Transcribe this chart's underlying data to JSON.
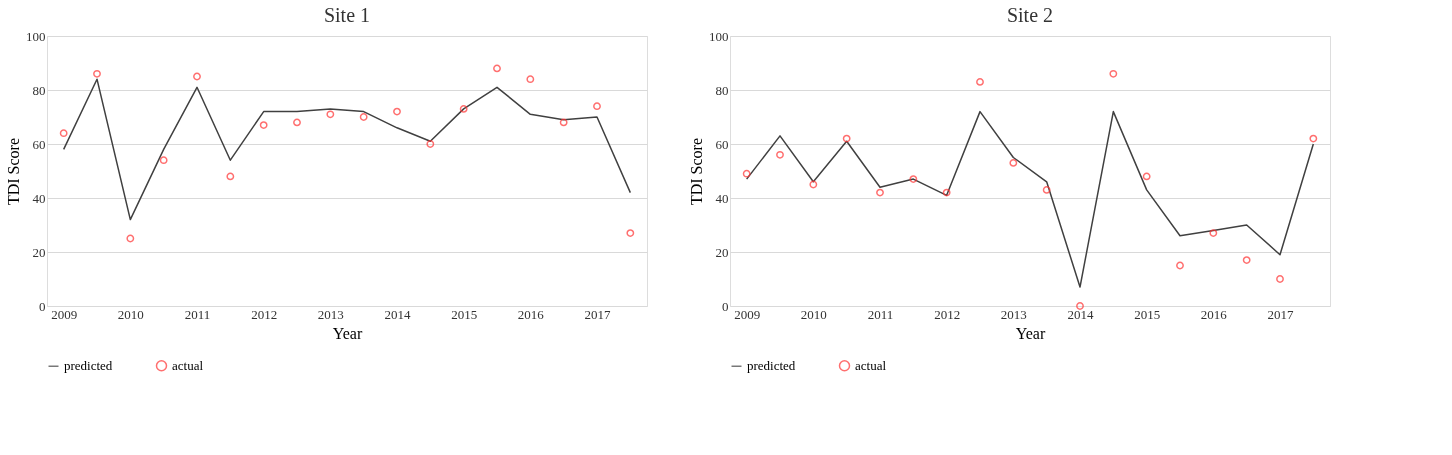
{
  "chart_data": [
    {
      "type": "line",
      "title": "Site 1",
      "xlabel": "Year",
      "ylabel": "TDI Score",
      "categories": [
        "2009",
        null,
        "2010",
        null,
        "2011",
        null,
        "2012",
        null,
        "2013",
        null,
        "2014",
        null,
        "2015",
        null,
        "2016",
        null,
        "2017",
        null
      ],
      "ylim": [
        0,
        100
      ],
      "yticks": [
        0,
        20,
        40,
        60,
        80,
        100
      ],
      "grid": "y",
      "legend": "bottom",
      "series": [
        {
          "name": "predicted",
          "color": "#404040",
          "marker": "none",
          "values": [
            58,
            84,
            32,
            58,
            81,
            54,
            72,
            72,
            73,
            72,
            66,
            61,
            73,
            81,
            71,
            69,
            70,
            42
          ]
        },
        {
          "name": "actual",
          "type": "scatter",
          "color": "#ff3333",
          "marker": "circle",
          "values": [
            64,
            86,
            25,
            54,
            85,
            48,
            67,
            68,
            71,
            70,
            72,
            60,
            73,
            88,
            84,
            68,
            74,
            27
          ]
        }
      ]
    },
    {
      "type": "line",
      "title": "Site 2",
      "xlabel": "Year",
      "ylabel": "TDI Score",
      "categories": [
        "2009",
        null,
        "2010",
        null,
        "2011",
        null,
        "2012",
        null,
        "2013",
        null,
        "2014",
        null,
        "2015",
        null,
        "2016",
        null,
        "2017",
        null
      ],
      "ylim": [
        0,
        100
      ],
      "yticks": [
        0,
        20,
        40,
        60,
        80,
        100
      ],
      "grid": "y",
      "legend": "bottom",
      "series": [
        {
          "name": "predicted",
          "color": "#404040",
          "marker": "none",
          "values": [
            47,
            63,
            46,
            61,
            44,
            47,
            41,
            72,
            55,
            46,
            7,
            72,
            43,
            26,
            28,
            30,
            19,
            60
          ]
        },
        {
          "name": "actual",
          "type": "scatter",
          "color": "#ff3333",
          "marker": "circle",
          "values": [
            49,
            56,
            45,
            62,
            42,
            47,
            42,
            83,
            53,
            43,
            0,
            86,
            48,
            15,
            27,
            17,
            10,
            62
          ]
        }
      ]
    }
  ]
}
